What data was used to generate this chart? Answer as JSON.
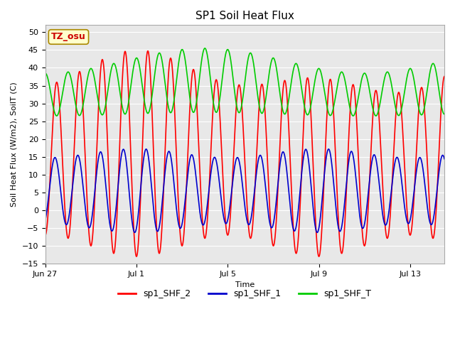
{
  "title": "SP1 Soil Heat Flux",
  "xlabel": "Time",
  "ylabel": "Soil Heat Flux (W/m2), SoilT (C)",
  "ylim": [
    -15,
    52
  ],
  "yticks": [
    -15,
    -10,
    -5,
    0,
    5,
    10,
    15,
    20,
    25,
    30,
    35,
    40,
    45,
    50
  ],
  "fig_bg_color": "#ffffff",
  "plot_bg_color": "#e8e8e8",
  "grid_color": "#ffffff",
  "annotation_text": "TZ_osu",
  "annotation_color": "#cc0000",
  "annotation_bg": "#ffffcc",
  "annotation_border": "#aa8800",
  "line_colors": {
    "sp1_SHF_2": "#ff0000",
    "sp1_SHF_1": "#0000cc",
    "sp1_SHF_T": "#00cc00"
  },
  "legend_labels": [
    "sp1_SHF_2",
    "sp1_SHF_1",
    "sp1_SHF_T"
  ],
  "duration_days": 17.5,
  "period_hours": 24,
  "title_fontsize": 11,
  "label_fontsize": 8,
  "tick_fontsize": 8,
  "legend_fontsize": 9,
  "line_width": 1.2,
  "xtick_dates": [
    "Jun 27",
    "Jul 1",
    "Jul 5",
    "Jul 9",
    "Jul 13"
  ],
  "xtick_offsets_days": [
    0,
    4,
    8,
    12,
    16
  ]
}
